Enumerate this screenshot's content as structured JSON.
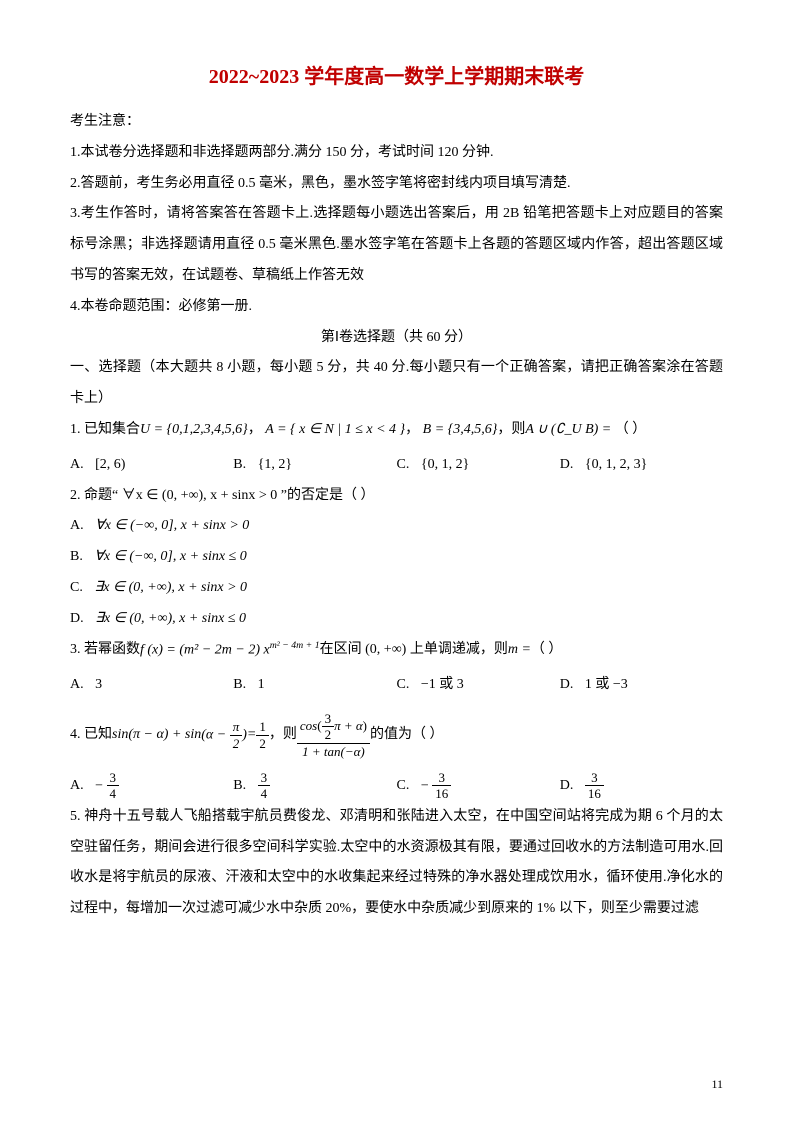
{
  "title": "2022~2023 学年度高一数学上学期期末联考",
  "notice_heading": "考生注意：",
  "notices": [
    "1.本试卷分选择题和非选择题两部分.满分 150 分，考试时间 120 分钟.",
    "2.答题前，考生务必用直径 0.5 毫米，黑色，墨水签字笔将密封线内项目填写清楚.",
    "3.考生作答时，请将答案答在答题卡上.选择题每小题选出答案后，用 2B 铅笔把答题卡上对应题目的答案标号涂黑；非选择题请用直径 0.5 毫米黑色.墨水签字笔在答题卡上各题的答题区域内作答，超出答题区域书写的答案无效，在试题卷、草稿纸上作答无效",
    "4.本卷命题范围：必修第一册."
  ],
  "part1_header": "第Ⅰ卷选择题（共 60 分）",
  "sectionA": "一、选择题（本大题共 8 小题，每小题 5 分，共 40 分.每小题只有一个正确答案，请把正确答案涂在答题卡上）",
  "q1": {
    "lead": "1.  已知集合 ",
    "U": "U = {0,1,2,3,4,5,6}",
    "A": "A = { x ∈ N | 1 ≤ x < 4 }",
    "B": "B = {3,4,5,6}",
    "tail": " 则 ",
    "expr": "A ∪ (∁_U B) =",
    "paren": "（ ）",
    "opts": {
      "A": "[2, 6)",
      "B": "{1, 2}",
      "C": "{0, 1, 2}",
      "D": "{0, 1, 2, 3}"
    }
  },
  "q2": {
    "stem": "2.  命题“ ∀x ∈ (0, +∞), x + sinx > 0 ”的否定是（ ）",
    "opts": {
      "A": "∀x ∈ (−∞, 0], x + sinx > 0",
      "B": "∀x ∈ (−∞, 0], x + sinx ≤ 0",
      "C": "∃x ∈ (0, +∞), x + sinx > 0",
      "D": "∃x ∈ (0, +∞), x + sinx ≤ 0"
    }
  },
  "q3": {
    "lead": "3.  若幂函数 ",
    "fx": "f (x) = (m² − 2m − 2) x",
    "exp": "m² − 4m + 1",
    "mid": " 在区间 (0, +∞) 上单调递减，则 ",
    "mvar": "m = ",
    "paren": "（ ）",
    "opts": {
      "A": "3",
      "B": "1",
      "C": "−1 或 3",
      "D": "1 或 −3"
    }
  },
  "q4": {
    "lead": "4.  已知 ",
    "lhs_a": "sin(π − α) + sin",
    "lhs_b_num": "π",
    "lhs_b_den": "2",
    "eq": " = ",
    "rhs1_num": "1",
    "rhs1_den": "2",
    "mid": "，则 ",
    "big_num_a": "cos",
    "big_num_inside_num": "3",
    "big_num_inside_den": "2",
    "big_num_tail": "π + α",
    "big_den": "1 + tan(−α)",
    "tail": " 的值为（ ）",
    "opts": {
      "A": {
        "sign": "−",
        "num": "3",
        "den": "4"
      },
      "B": {
        "sign": "",
        "num": "3",
        "den": "4"
      },
      "C": {
        "sign": "−",
        "num": "3",
        "den": "16"
      },
      "D": {
        "sign": "",
        "num": "3",
        "den": "16"
      }
    }
  },
  "q5": {
    "text": "5.  神舟十五号载人飞船搭载宇航员费俊龙、邓清明和张陆进入太空，在中国空间站将完成为期 6 个月的太空驻留任务，期间会进行很多空间科学实验.太空中的水资源极其有限，要通过回收水的方法制造可用水.回收水是将宇航员的尿液、汗液和太空中的水收集起来经过特殊的净水器处理成饮用水，循环使用.净化水的过程中，每增加一次过滤可减少水中杂质 20%，要使水中杂质减少到原来的 1% 以下，则至少需要过滤"
  },
  "opt_labels": {
    "A": "A.",
    "B": "B.",
    "C": "C.",
    "D": "D."
  },
  "comma": "，",
  "page_number": "11"
}
